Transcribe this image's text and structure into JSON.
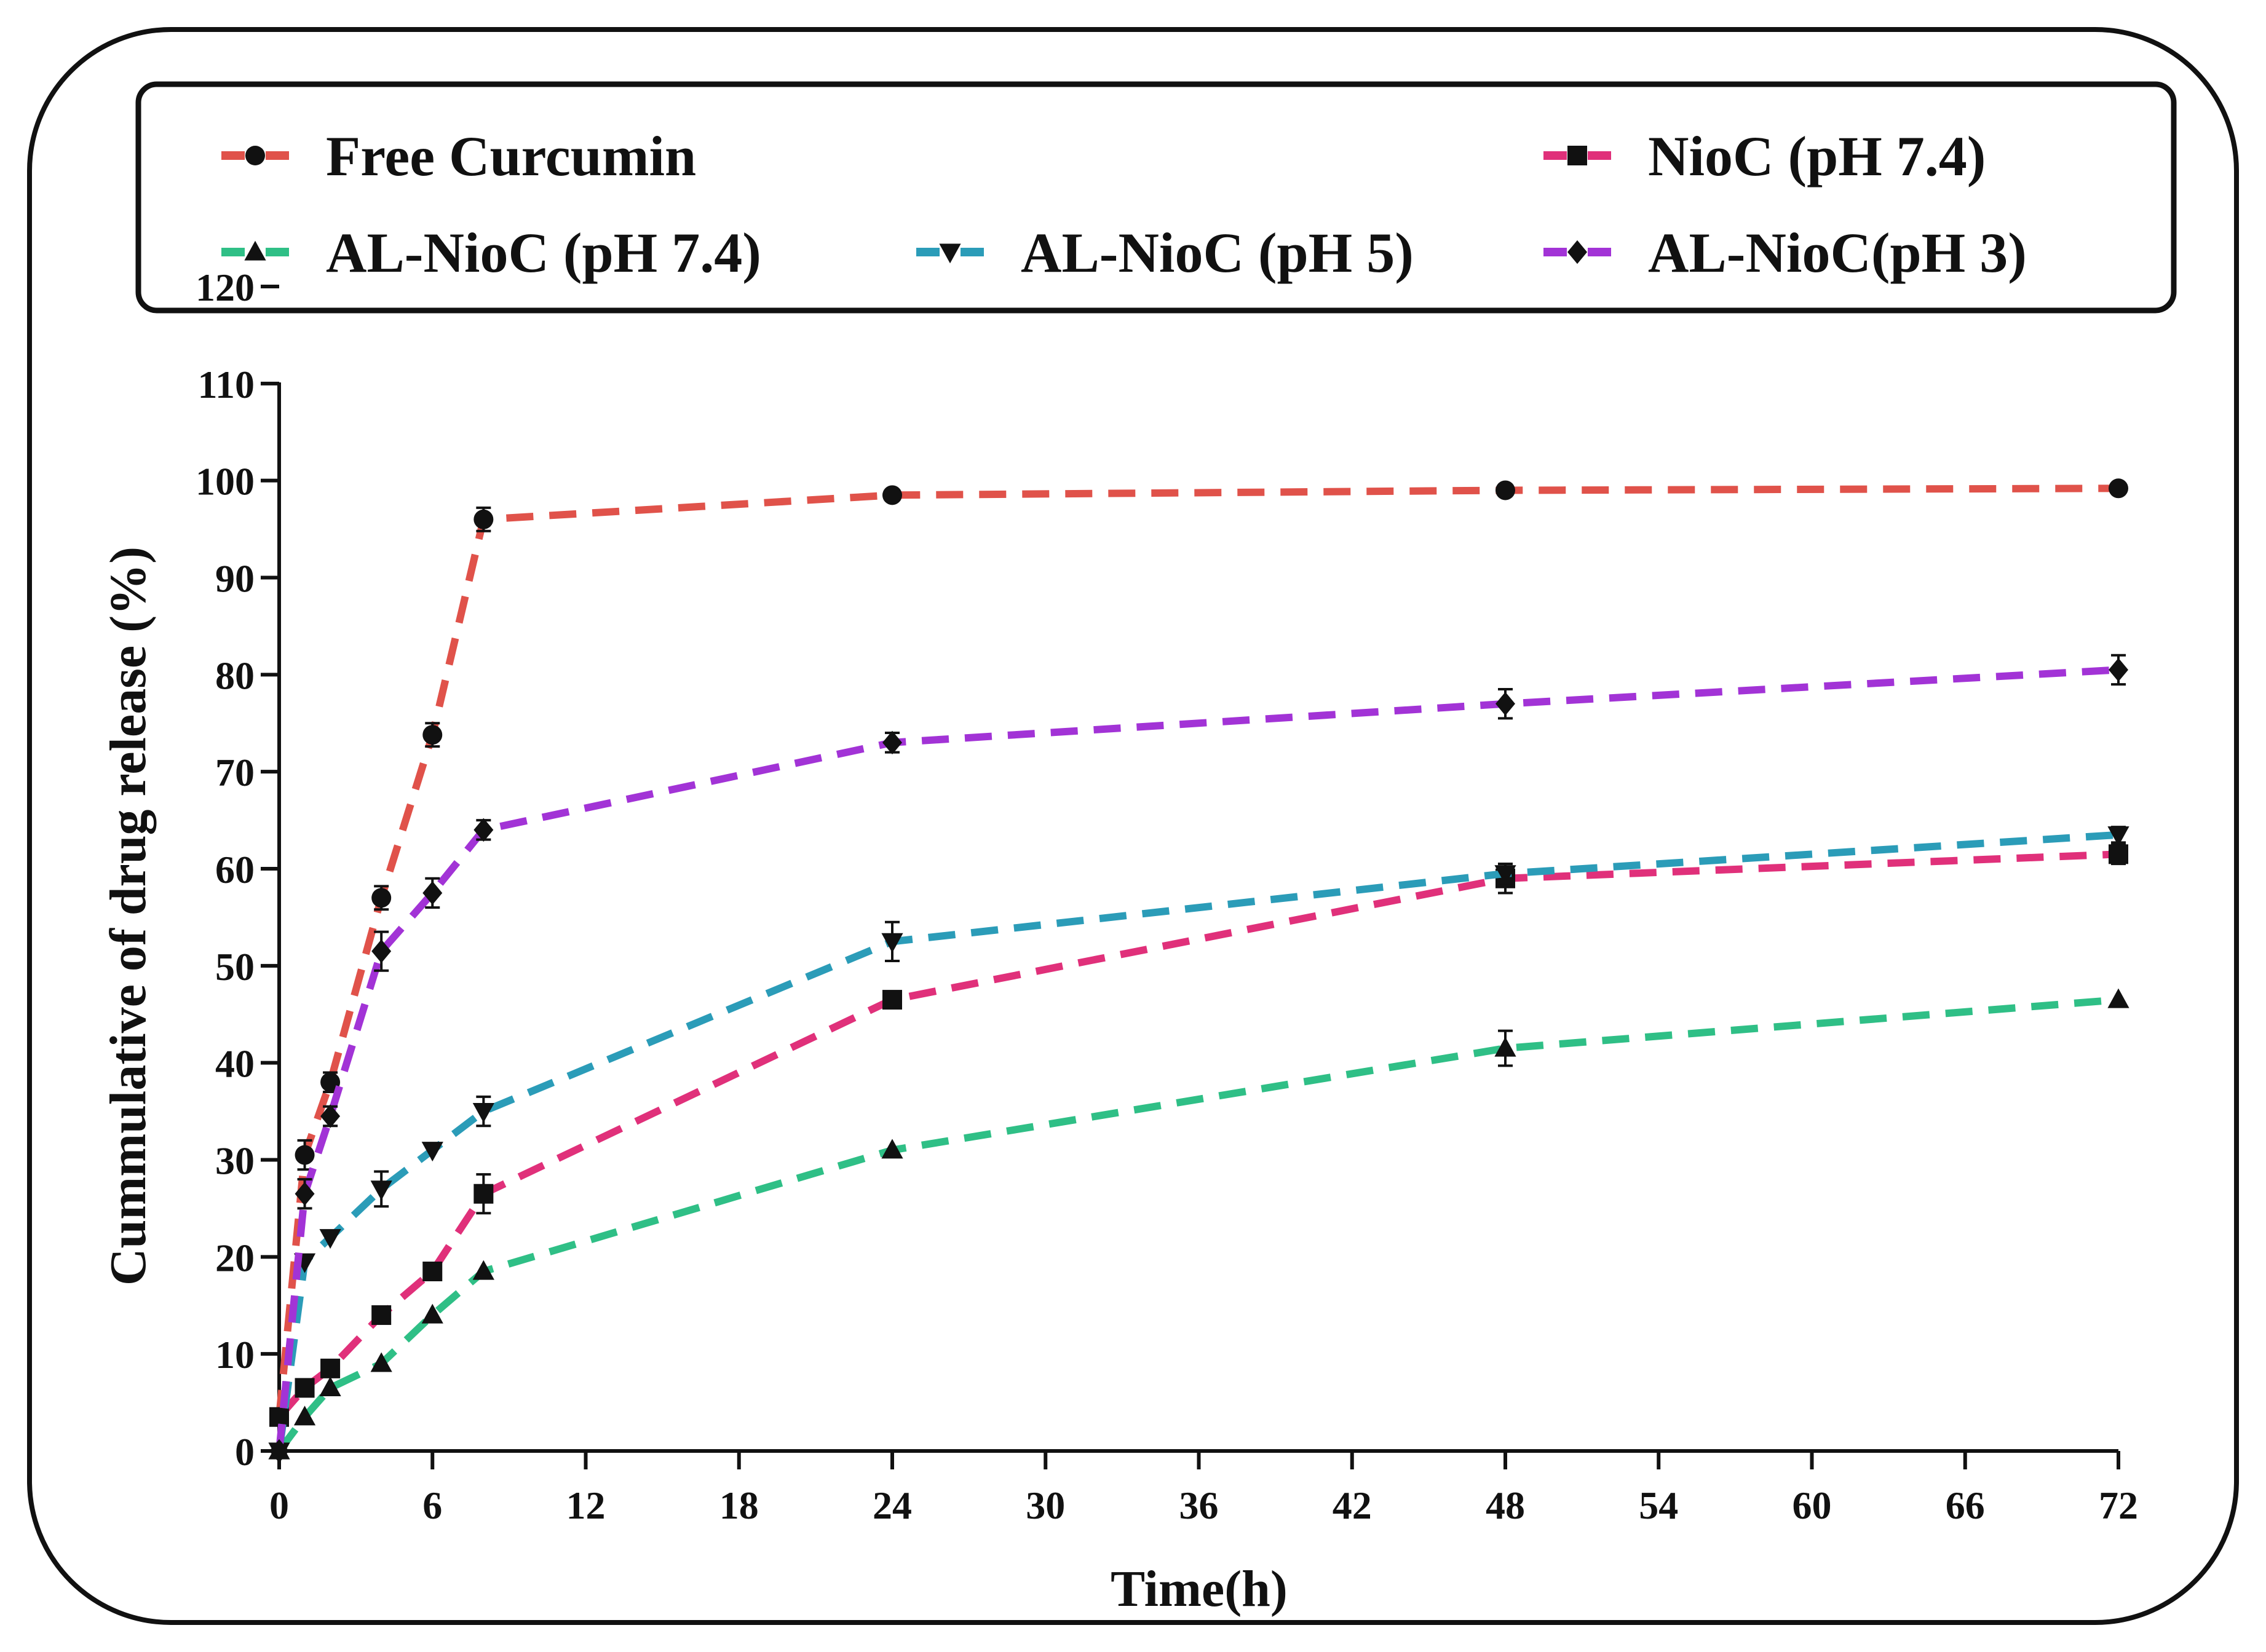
{
  "chart_data": {
    "type": "line",
    "title": "",
    "xlabel": "Time(h)",
    "ylabel": "Cummulative of drug release (%)",
    "xlim": [
      0,
      72
    ],
    "ylim": [
      0,
      120
    ],
    "xticks": [
      0,
      6,
      12,
      18,
      24,
      30,
      36,
      42,
      48,
      54,
      60,
      66,
      72
    ],
    "yticks": [
      0,
      10,
      20,
      30,
      40,
      50,
      60,
      70,
      80,
      90,
      100,
      110,
      120
    ],
    "legend_position": "top, boxed above plot",
    "series": [
      {
        "name": "Free Curcumin",
        "color": "#e0524a",
        "marker": "circle",
        "x": [
          0,
          1,
          2,
          4,
          6,
          8,
          24,
          48,
          72
        ],
        "values": [
          3.5,
          30.5,
          38,
          57,
          73.8,
          96,
          98.5,
          99,
          99.2
        ],
        "errors": [
          0,
          1.5,
          1,
          1.2,
          1.2,
          1.2,
          0,
          0,
          0
        ]
      },
      {
        "name": "NioC (pH 7.4)",
        "color": "#e0307a",
        "marker": "square",
        "x": [
          0,
          1,
          2,
          4,
          6,
          8,
          24,
          48,
          72
        ],
        "values": [
          3.5,
          6.5,
          8.5,
          14,
          18.5,
          26.5,
          46.5,
          59,
          61.5
        ],
        "errors": [
          0,
          0,
          0,
          0,
          0,
          2,
          0,
          1.5,
          1
        ]
      },
      {
        "name": "AL-NioC (pH 7.4)",
        "color": "#2fbf86",
        "marker": "triangle-up",
        "x": [
          0,
          1,
          2,
          4,
          6,
          8,
          24,
          48,
          72
        ],
        "values": [
          0,
          3.5,
          6.5,
          9,
          14,
          18.5,
          31,
          41.5,
          46.5
        ],
        "errors": [
          0,
          0,
          0,
          0,
          0,
          0,
          0,
          1.8,
          0
        ]
      },
      {
        "name": "AL-NioC (pH 5)",
        "color": "#2b9cb8",
        "marker": "triangle-down",
        "x": [
          0,
          1,
          2,
          4,
          6,
          8,
          24,
          48,
          72
        ],
        "values": [
          0,
          19.5,
          22,
          27,
          31,
          35,
          52.5,
          59.5,
          63.5
        ],
        "errors": [
          0,
          0,
          0,
          1.8,
          0,
          1.5,
          2,
          1,
          0.8
        ]
      },
      {
        "name": "AL-NioC(pH 3)",
        "color": "#a233d6",
        "marker": "diamond",
        "x": [
          0,
          1,
          2,
          4,
          6,
          8,
          24,
          48,
          72
        ],
        "values": [
          0,
          26.5,
          34.5,
          51.5,
          57.5,
          64,
          73,
          77,
          80.5
        ],
        "errors": [
          0,
          1.5,
          1,
          2,
          1.5,
          1,
          1,
          1.5,
          1.5
        ]
      }
    ]
  }
}
